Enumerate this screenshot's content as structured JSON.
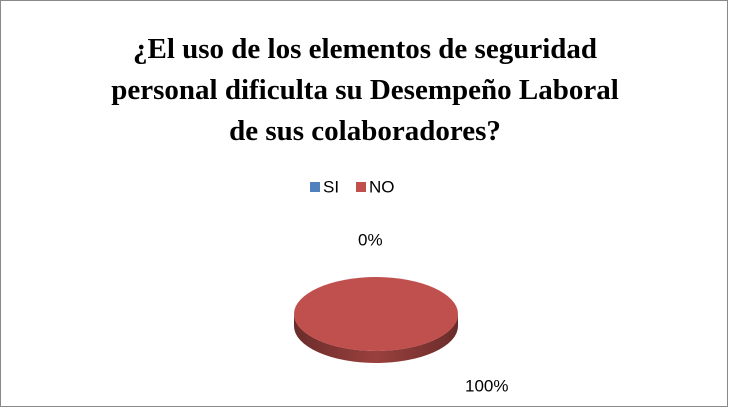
{
  "chart_data": {
    "type": "pie",
    "title": "¿El uso de los elementos de seguridad personal dificulta su Desempeño Laboral de sus colaboradores?",
    "categories": [
      "SI",
      "NO"
    ],
    "values": [
      0,
      100
    ],
    "value_labels": [
      "0%",
      "100%"
    ],
    "colors": [
      "#4f81bd",
      "#c0504d"
    ],
    "legend": "top"
  }
}
